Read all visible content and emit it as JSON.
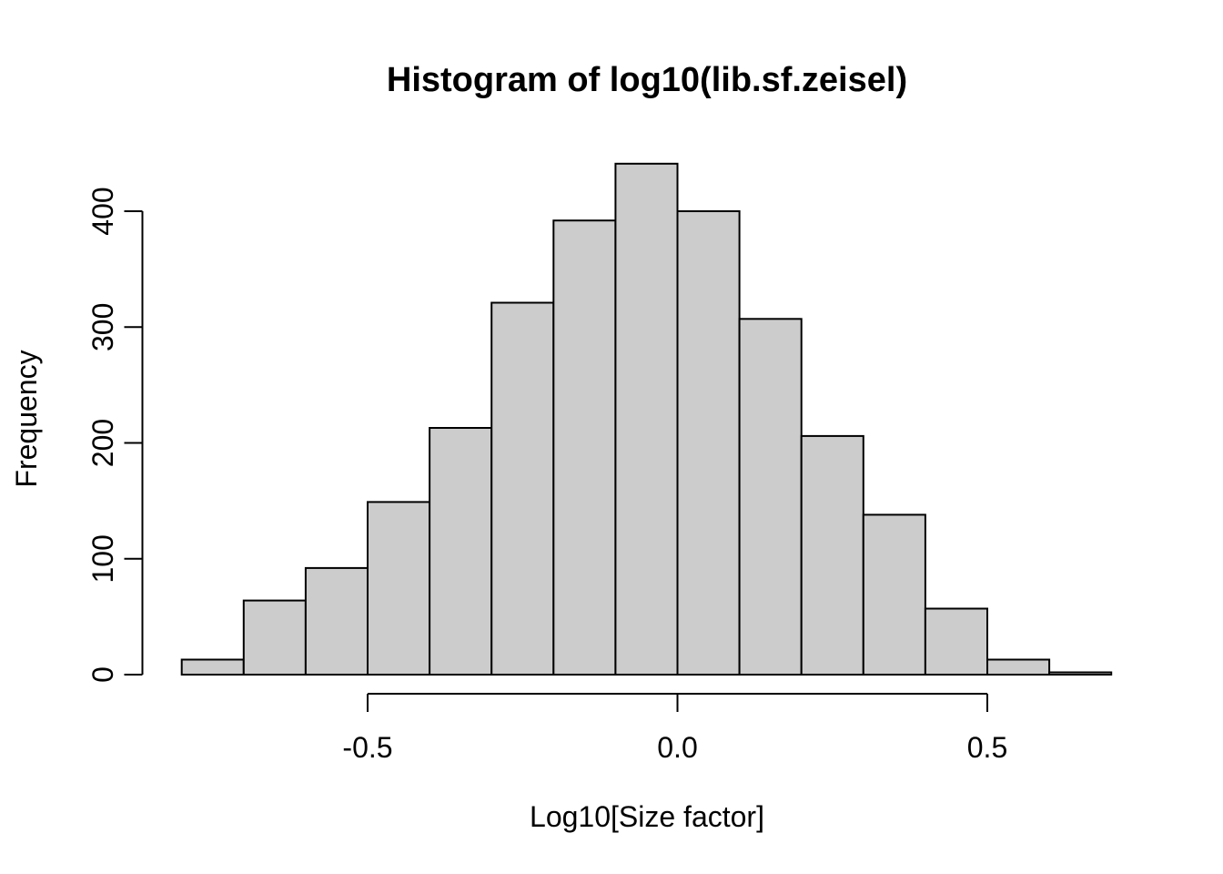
{
  "chart_data": {
    "type": "bar",
    "subtype": "histogram",
    "title": "Histogram of log10(lib.sf.zeisel)",
    "xlabel": "Log10[Size factor]",
    "ylabel": "Frequency",
    "bin_width": 0.1,
    "bin_edges": [
      -0.8,
      -0.7,
      -0.6,
      -0.5,
      -0.4,
      -0.3,
      -0.2,
      -0.1,
      0.0,
      0.1,
      0.2,
      0.3,
      0.4,
      0.5,
      0.6,
      0.7
    ],
    "frequencies": [
      13,
      64,
      92,
      149,
      213,
      321,
      392,
      441,
      400,
      307,
      206,
      138,
      57,
      13,
      2
    ],
    "x_ticks": [
      {
        "value": -0.5,
        "label": "-0.5"
      },
      {
        "value": 0.0,
        "label": "0.0"
      },
      {
        "value": 0.5,
        "label": "0.5"
      }
    ],
    "y_ticks": [
      {
        "value": 0,
        "label": "0"
      },
      {
        "value": 100,
        "label": "100"
      },
      {
        "value": 200,
        "label": "200"
      },
      {
        "value": 300,
        "label": "300"
      },
      {
        "value": 400,
        "label": "400"
      }
    ],
    "xlim": [
      -0.8,
      0.7
    ],
    "ylim": [
      0,
      441
    ],
    "grid": false,
    "legend": null,
    "colors": {
      "bar_fill": "#CCCCCC",
      "bar_stroke": "#000000",
      "axis": "#000000",
      "text": "#000000",
      "background": "#FFFFFF"
    }
  }
}
